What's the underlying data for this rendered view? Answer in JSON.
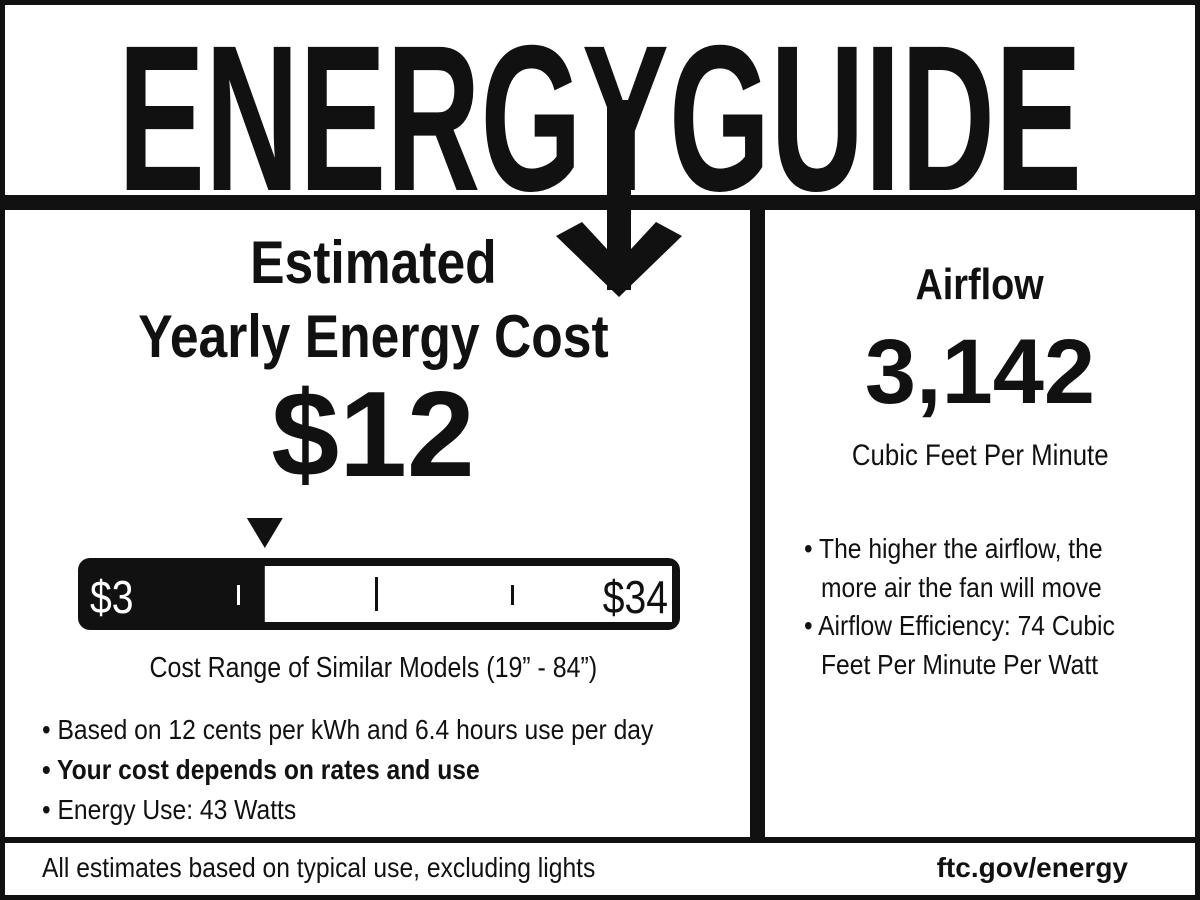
{
  "header": {
    "title": "ENERGYGUIDE"
  },
  "cost": {
    "heading_line1": "Estimated",
    "heading_line2": "Yearly Energy Cost",
    "value": "$12",
    "scale": {
      "min_label": "$3",
      "max_label": "$34",
      "min": 3,
      "max": 34,
      "marker_value": 12
    },
    "range_caption": "Cost Range of Similar Models (19” - 84”)",
    "bullets": [
      {
        "text": "• Based on 12 cents per kWh and 6.4 hours use per day",
        "bold": false
      },
      {
        "text": "• Your cost depends on rates and use",
        "bold": true
      },
      {
        "text": "• Energy Use: 43 Watts",
        "bold": false
      }
    ]
  },
  "airflow": {
    "heading": "Airflow",
    "value": "3,142",
    "unit": "Cubic Feet Per Minute",
    "bullets": [
      {
        "line1": "• The higher the airflow, the",
        "line2": "more air the fan will move"
      },
      {
        "line1": "• Airflow Efficiency: 74 Cubic",
        "line2": "Feet Per Minute Per Watt"
      }
    ]
  },
  "footer": {
    "note": "All estimates based on typical use, excluding lights",
    "link": "ftc.gov/energy"
  },
  "colors": {
    "ink": "#111111",
    "paper": "#ffffff"
  }
}
